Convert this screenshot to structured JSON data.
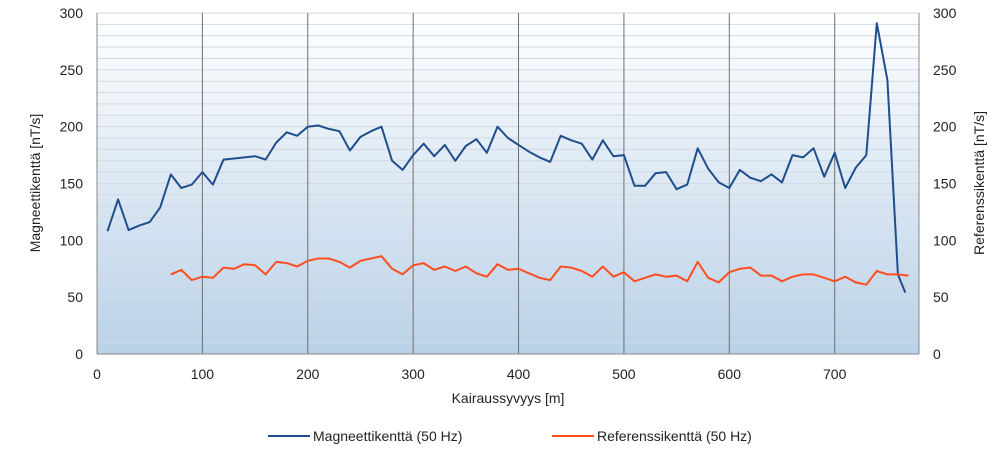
{
  "chart_data": {
    "type": "line",
    "title": "",
    "xlabel": "Kairaussyvyys [m]",
    "ylabel_left": "Magneettikenttä [nT/s]",
    "ylabel_right": "Referenssikenttä [nT/s]",
    "xlim": [
      0,
      780
    ],
    "ylim": [
      0,
      300
    ],
    "x_ticks": [
      0,
      100,
      200,
      300,
      400,
      500,
      600,
      700
    ],
    "y_ticks": [
      0,
      50,
      100,
      150,
      200,
      250,
      300
    ],
    "grid": "vertical major every 100 m, horizontal minor every 10 nT/s",
    "legend_position": "bottom",
    "colors": {
      "magnetic": "#1f4e8c",
      "reference": "#ff4d1f",
      "background_top": "#ffffff",
      "background_bottom": "#b9d1e8"
    },
    "series": [
      {
        "name": "Magneettikenttä (50 Hz)",
        "color": "#1f4e8c",
        "x": [
          10,
          20,
          30,
          40,
          50,
          60,
          70,
          80,
          90,
          100,
          110,
          120,
          130,
          140,
          150,
          160,
          170,
          180,
          190,
          200,
          210,
          220,
          230,
          240,
          250,
          260,
          270,
          280,
          290,
          300,
          310,
          320,
          330,
          340,
          350,
          360,
          370,
          380,
          390,
          400,
          410,
          420,
          430,
          440,
          450,
          460,
          470,
          480,
          490,
          500,
          510,
          520,
          530,
          540,
          550,
          560,
          570,
          580,
          590,
          600,
          610,
          620,
          630,
          640,
          650,
          660,
          670,
          680,
          690,
          700,
          710,
          720,
          730,
          740,
          750,
          760,
          767
        ],
        "values": [
          108,
          136,
          109,
          113,
          116,
          129,
          158,
          146,
          149,
          160,
          149,
          171,
          172,
          173,
          174,
          171,
          186,
          195,
          192,
          200,
          201,
          198,
          196,
          179,
          191,
          196,
          200,
          170,
          162,
          175,
          185,
          174,
          184,
          170,
          183,
          189,
          177,
          200,
          190,
          184,
          178,
          173,
          169,
          192,
          188,
          185,
          171,
          188,
          174,
          175,
          148,
          148,
          159,
          160,
          145,
          149,
          181,
          163,
          151,
          146,
          162,
          155,
          152,
          158,
          151,
          175,
          173,
          181,
          156,
          177,
          146,
          164,
          175,
          291,
          241,
          70,
          54
        ]
      },
      {
        "name": "Referenssikenttä (50 Hz)",
        "color": "#ff4d1f",
        "x": [
          70,
          80,
          90,
          100,
          110,
          120,
          130,
          140,
          150,
          160,
          170,
          180,
          190,
          200,
          210,
          220,
          230,
          240,
          250,
          260,
          270,
          280,
          290,
          300,
          310,
          320,
          330,
          340,
          350,
          360,
          370,
          380,
          390,
          400,
          410,
          420,
          430,
          440,
          450,
          460,
          470,
          480,
          490,
          500,
          510,
          520,
          530,
          540,
          550,
          560,
          570,
          580,
          590,
          600,
          610,
          620,
          630,
          640,
          650,
          660,
          670,
          680,
          690,
          700,
          710,
          720,
          730,
          740,
          750,
          760,
          770
        ],
        "values": [
          70,
          74,
          65,
          68,
          67,
          76,
          75,
          79,
          78,
          70,
          81,
          80,
          77,
          82,
          84,
          84,
          81,
          76,
          82,
          84,
          86,
          75,
          70,
          78,
          80,
          74,
          77,
          73,
          77,
          71,
          68,
          79,
          74,
          75,
          71,
          67,
          65,
          77,
          76,
          73,
          68,
          77,
          68,
          72,
          64,
          67,
          70,
          68,
          69,
          64,
          81,
          67,
          63,
          72,
          75,
          76,
          69,
          69,
          64,
          68,
          70,
          70,
          67,
          64,
          68,
          63,
          61,
          73,
          70,
          70,
          69
        ]
      }
    ]
  }
}
